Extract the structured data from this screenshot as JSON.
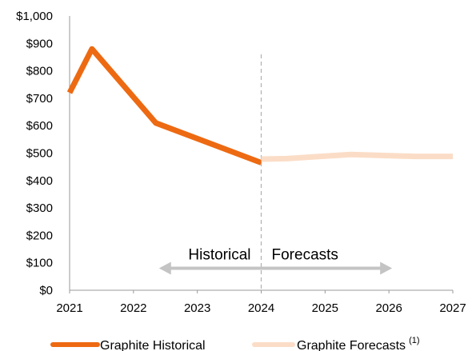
{
  "chart_data": {
    "type": "line",
    "x_ticks": [
      "2021",
      "2022",
      "2023",
      "2024",
      "2025",
      "2026",
      "2027"
    ],
    "y_ticks": [
      "$0",
      "$100",
      "$200",
      "$300",
      "$400",
      "$500",
      "$600",
      "$700",
      "$800",
      "$900",
      "$1,000"
    ],
    "ylim": [
      0,
      1000
    ],
    "xlim": [
      2021,
      2027
    ],
    "grid": false,
    "series": [
      {
        "name": "Graphite Historical",
        "color": "#ED6A12",
        "points": [
          [
            2021.0,
            720
          ],
          [
            2021.35,
            880
          ],
          [
            2022.35,
            610
          ],
          [
            2024.0,
            465
          ]
        ]
      },
      {
        "name": "Graphite Forecasts",
        "superscript": "(1)",
        "color": "#FBDDC7",
        "points": [
          [
            2024.0,
            478
          ],
          [
            2024.4,
            480
          ],
          [
            2025.4,
            495
          ],
          [
            2026.4,
            488
          ],
          [
            2027.0,
            488
          ]
        ]
      }
    ],
    "annotations": {
      "divider_x": 2024,
      "historical_label": "Historical",
      "forecasts_label": "Forecasts",
      "arrow_range": [
        2022.35,
        2026.1
      ],
      "arrow_y": 80
    },
    "legend_position": "bottom"
  }
}
